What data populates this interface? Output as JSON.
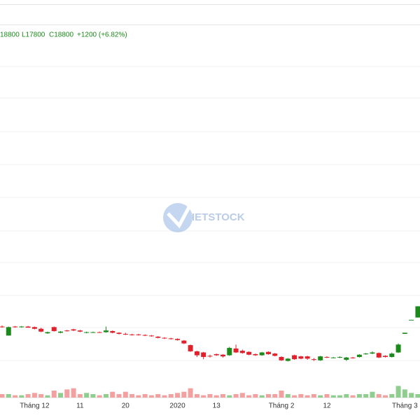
{
  "ohlc_header": {
    "high": "18800",
    "low": "L17800",
    "close": "C18800",
    "change": "+1200 (+6.82%)"
  },
  "watermark": "IETSTOCK",
  "chart_data": {
    "type": "candlestick",
    "categories": [
      null,
      null,
      null,
      null,
      null,
      "Tháng 12",
      null,
      null,
      null,
      null,
      null,
      null,
      "11",
      null,
      null,
      null,
      null,
      null,
      null,
      "20",
      null,
      null,
      null,
      null,
      null,
      null,
      null,
      "2020",
      null,
      null,
      null,
      null,
      null,
      "13",
      null,
      null,
      null,
      null,
      null,
      null,
      null,
      null,
      null,
      "Tháng 2",
      null,
      null,
      null,
      null,
      null,
      null,
      "12",
      null,
      null,
      null,
      null,
      null,
      null,
      null,
      null,
      null,
      null,
      null,
      "Tháng 3",
      null,
      null
    ],
    "open": [
      17000,
      16200,
      17000,
      16950,
      17000,
      16950,
      16800,
      16400,
      16950,
      16450,
      16650,
      16750,
      16650,
      16450,
      16500,
      16500,
      16500,
      16600,
      16450,
      16350,
      16300,
      16300,
      16250,
      16200,
      16100,
      16000,
      15950,
      15900,
      15750,
      15350,
      14800,
      14700,
      14400,
      14550,
      14500,
      14450,
      15050,
      14850,
      14750,
      14550,
      14450,
      14750,
      14600,
      14300,
      13950,
      14450,
      14350,
      14350,
      14100,
      14000,
      14300,
      14250,
      14250,
      14050,
      14250,
      14300,
      14550,
      14600,
      14650,
      14400,
      14300,
      14700,
      16350,
      17600,
      17800
    ],
    "high": [
      17100,
      17000,
      17050,
      17050,
      17050,
      17000,
      16900,
      16550,
      17000,
      16600,
      16700,
      16800,
      16700,
      16550,
      16550,
      16550,
      17000,
      16650,
      16500,
      16450,
      16350,
      16350,
      16300,
      16250,
      16150,
      16050,
      16000,
      15950,
      15800,
      15400,
      14850,
      14750,
      14500,
      14600,
      14550,
      15200,
      15400,
      14950,
      14800,
      14600,
      14750,
      14800,
      14650,
      14350,
      14200,
      14500,
      14400,
      14400,
      14200,
      14400,
      14350,
      14300,
      14350,
      14300,
      14300,
      14550,
      14650,
      14800,
      14700,
      14450,
      14700,
      15500,
      16450,
      17600,
      18800
    ],
    "low": [
      16900,
      16200,
      16900,
      16900,
      16900,
      16750,
      16500,
      16350,
      16550,
      16400,
      16550,
      16600,
      16500,
      16400,
      16450,
      16450,
      16450,
      16400,
      16300,
      16250,
      16200,
      16200,
      16150,
      16100,
      15950,
      15900,
      15850,
      15750,
      15450,
      14750,
      14300,
      14100,
      14250,
      14400,
      14250,
      14400,
      14650,
      14600,
      14450,
      14400,
      14400,
      14500,
      14350,
      13950,
      13900,
      14050,
      14100,
      14050,
      13950,
      13950,
      14200,
      14200,
      14200,
      13950,
      14150,
      14250,
      14500,
      14550,
      14200,
      14250,
      14250,
      14650,
      16350,
      17600,
      17800
    ],
    "close": [
      16950,
      16950,
      16950,
      17000,
      16900,
      16800,
      16550,
      16500,
      16600,
      16550,
      16600,
      16650,
      16550,
      16500,
      16500,
      16450,
      16650,
      16450,
      16350,
      16300,
      16250,
      16250,
      16200,
      16150,
      16000,
      15950,
      15900,
      15800,
      15500,
      14800,
      14450,
      14300,
      14350,
      14450,
      14350,
      15100,
      14700,
      14650,
      14500,
      14450,
      14700,
      14550,
      14400,
      14000,
      14150,
      14100,
      14150,
      14150,
      14050,
      14350,
      14250,
      14250,
      14300,
      14250,
      14200,
      14500,
      14600,
      14700,
      14250,
      14300,
      14600,
      15400,
      16450,
      17600,
      18800
    ],
    "volume": [
      3,
      3,
      2,
      2,
      3,
      4,
      3,
      2,
      6,
      4,
      7,
      8,
      3,
      4,
      3,
      2,
      3,
      5,
      3,
      5,
      3,
      2,
      3,
      2,
      3,
      2,
      3,
      4,
      5,
      8,
      3,
      2,
      3,
      2,
      3,
      2,
      3,
      4,
      2,
      3,
      2,
      3,
      3,
      6,
      3,
      2,
      3,
      2,
      3,
      2,
      3,
      2,
      2,
      3,
      2,
      3,
      3,
      5,
      3,
      2,
      3,
      10,
      7,
      4,
      3
    ],
    "ylim": [
      11500,
      43500
    ],
    "vlim": [
      0,
      12
    ],
    "up_color": "#1b8a1b",
    "down_color": "#e0202a",
    "up_volume_color": "#8fce8f",
    "down_volume_color": "#f2a0a0"
  }
}
